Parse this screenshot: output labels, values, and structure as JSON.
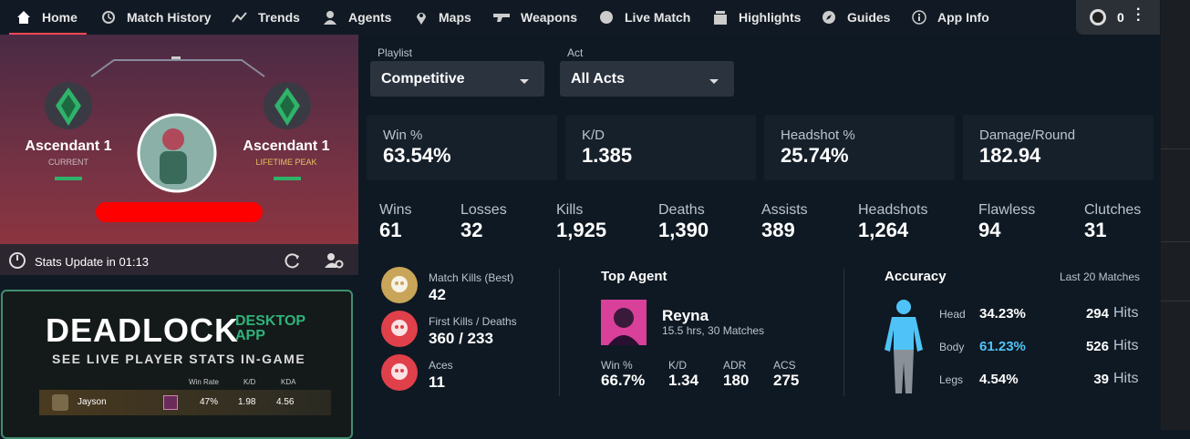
{
  "nav": {
    "items": [
      "Home",
      "Match History",
      "Trends",
      "Agents",
      "Maps",
      "Weapons",
      "Live Match",
      "Highlights",
      "Guides",
      "App Info"
    ],
    "counter": "0"
  },
  "profile": {
    "current_rank": "Ascendant 1",
    "current_label": "CURRENT",
    "peak_rank": "Ascendant 1",
    "peak_label": "LIFETIME PEAK",
    "stats_update": "Stats Update in 01:13"
  },
  "ad": {
    "title": "DEADLOCK",
    "badge": [
      "DESKTOP",
      "APP"
    ],
    "tagline": "SEE LIVE PLAYER STATS IN-GAME",
    "columns": [
      "Win Rate",
      "K/D",
      "KDA"
    ],
    "row": {
      "name": "Jayson",
      "values": [
        "47%",
        "1.98",
        "4.56"
      ]
    }
  },
  "filters": [
    {
      "label": "Playlist",
      "value": "Competitive"
    },
    {
      "label": "Act",
      "value": "All Acts"
    }
  ],
  "cards": [
    {
      "label": "Win %",
      "value": "63.54%"
    },
    {
      "label": "K/D",
      "value": "1.385"
    },
    {
      "label": "Headshot %",
      "value": "25.74%"
    },
    {
      "label": "Damage/Round",
      "value": "182.94"
    }
  ],
  "stats": [
    {
      "label": "Wins",
      "value": "61"
    },
    {
      "label": "Losses",
      "value": "32"
    },
    {
      "label": "Kills",
      "value": "1,925"
    },
    {
      "label": "Deaths",
      "value": "1,390"
    },
    {
      "label": "Assists",
      "value": "389"
    },
    {
      "label": "Headshots",
      "value": "1,264"
    },
    {
      "label": "Flawless",
      "value": "94"
    },
    {
      "label": "Clutches",
      "value": "31"
    }
  ],
  "highlights": [
    {
      "label": "Match Kills (Best)",
      "value": "42"
    },
    {
      "label": "First Kills / Deaths",
      "value": "360 / 233"
    },
    {
      "label": "Aces",
      "value": "11"
    }
  ],
  "top_agent": {
    "title": "Top Agent",
    "name": "Reyna",
    "subtitle": "15.5 hrs, 30 Matches",
    "stats": [
      {
        "label": "Win %",
        "value": "66.7%"
      },
      {
        "label": "K/D",
        "value": "1.34"
      },
      {
        "label": "ADR",
        "value": "180"
      },
      {
        "label": "ACS",
        "value": "275"
      }
    ]
  },
  "accuracy": {
    "title": "Accuracy",
    "period": "Last 20 Matches",
    "hits_label": "Hits",
    "rows": [
      {
        "label": "Head",
        "percent": "34.23%",
        "hits": "294"
      },
      {
        "label": "Body",
        "percent": "61.23%",
        "hits": "526"
      },
      {
        "label": "Legs",
        "percent": "4.54%",
        "hits": "39"
      }
    ]
  }
}
